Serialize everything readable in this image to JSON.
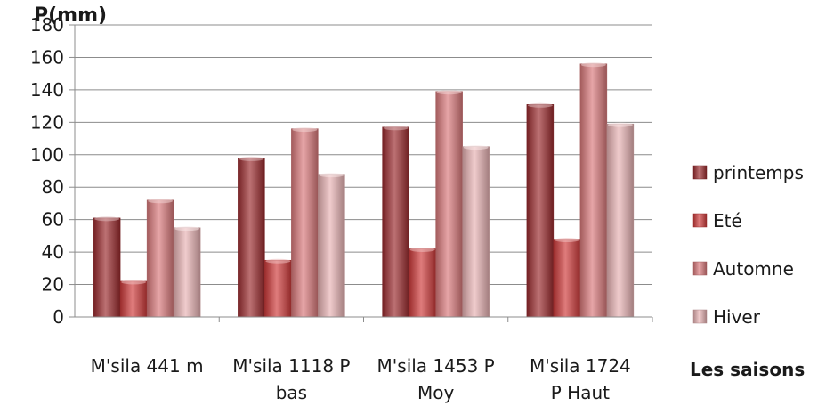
{
  "chart_data": {
    "type": "bar",
    "title": "",
    "ylabel": "P(mm)",
    "xlabel": "Les saisons",
    "ylim": [
      0,
      180
    ],
    "ytick_step": 20,
    "grid": true,
    "legend_position": "right",
    "categories": [
      [
        "M'sila 441 m"
      ],
      [
        "M'sila 1118 P",
        "bas"
      ],
      [
        "M'sila 1453 P",
        "Moy"
      ],
      [
        "M'sila  1724",
        "P Haut"
      ]
    ],
    "series": [
      {
        "name": "printemps",
        "color": "#9b2b2e",
        "values": [
          61,
          98,
          117,
          131
        ]
      },
      {
        "name": "Eté",
        "color": "#cf3b3b",
        "values": [
          22,
          35,
          42,
          48
        ]
      },
      {
        "name": "Automne",
        "color": "#d9797b",
        "values": [
          72,
          116,
          139,
          156
        ]
      },
      {
        "name": "Hiver",
        "color": "#e8b3b4",
        "values": [
          55,
          88,
          105,
          119
        ]
      }
    ]
  }
}
